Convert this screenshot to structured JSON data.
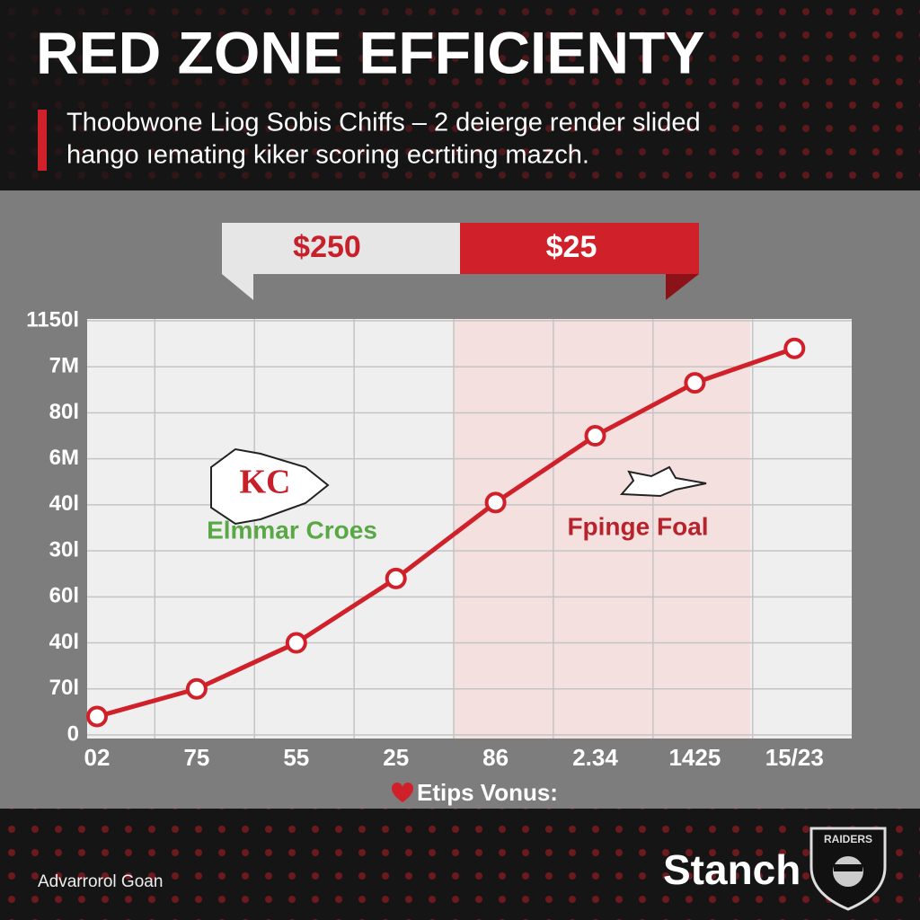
{
  "chart_data": {
    "type": "line",
    "title": "RED ZONE EFFICIENTY",
    "subtitle": [
      "Thoobwone Liog Sobis Chiffs – 2 deierge render slided",
      "hango ıemating kiker scoring ecrtiting mazch."
    ],
    "badges": [
      {
        "text": "$250",
        "color": "#c8202a"
      },
      {
        "text": "$25",
        "color": "#ffffff"
      }
    ],
    "categories": [
      "02",
      "75",
      "55",
      "25",
      "86",
      "2.34",
      "1425",
      "15/23"
    ],
    "series": [
      {
        "name": "Etips Vonus:",
        "color": "#d0212a",
        "values": [
          0.4,
          1.0,
          2.0,
          3.4,
          5.05,
          6.5,
          7.65,
          8.4
        ]
      }
    ],
    "ylim": [
      0,
      9
    ],
    "yticks": [
      0,
      {
        "value": 1,
        "label": "70l"
      },
      {
        "value": 2,
        "label": "40l"
      },
      {
        "value": 3,
        "label": "60l"
      },
      {
        "value": 4,
        "label": "30l"
      },
      {
        "value": 5,
        "label": "40l"
      },
      {
        "value": 6,
        "label": "6M"
      },
      {
        "value": 7,
        "label": "80l"
      },
      {
        "value": 8,
        "label": "7M"
      },
      {
        "value": 9,
        "label": "1150l"
      }
    ],
    "grid": true,
    "annotations": [
      {
        "text": "Elmmar Croes",
        "color": "#5aa845"
      },
      {
        "text": "Fpinge Foal",
        "color": "#b8232b"
      }
    ],
    "logos": [
      "KC",
      "RAIDERS"
    ],
    "brand": "Stanch",
    "footer": "Advarrorol Goan"
  }
}
